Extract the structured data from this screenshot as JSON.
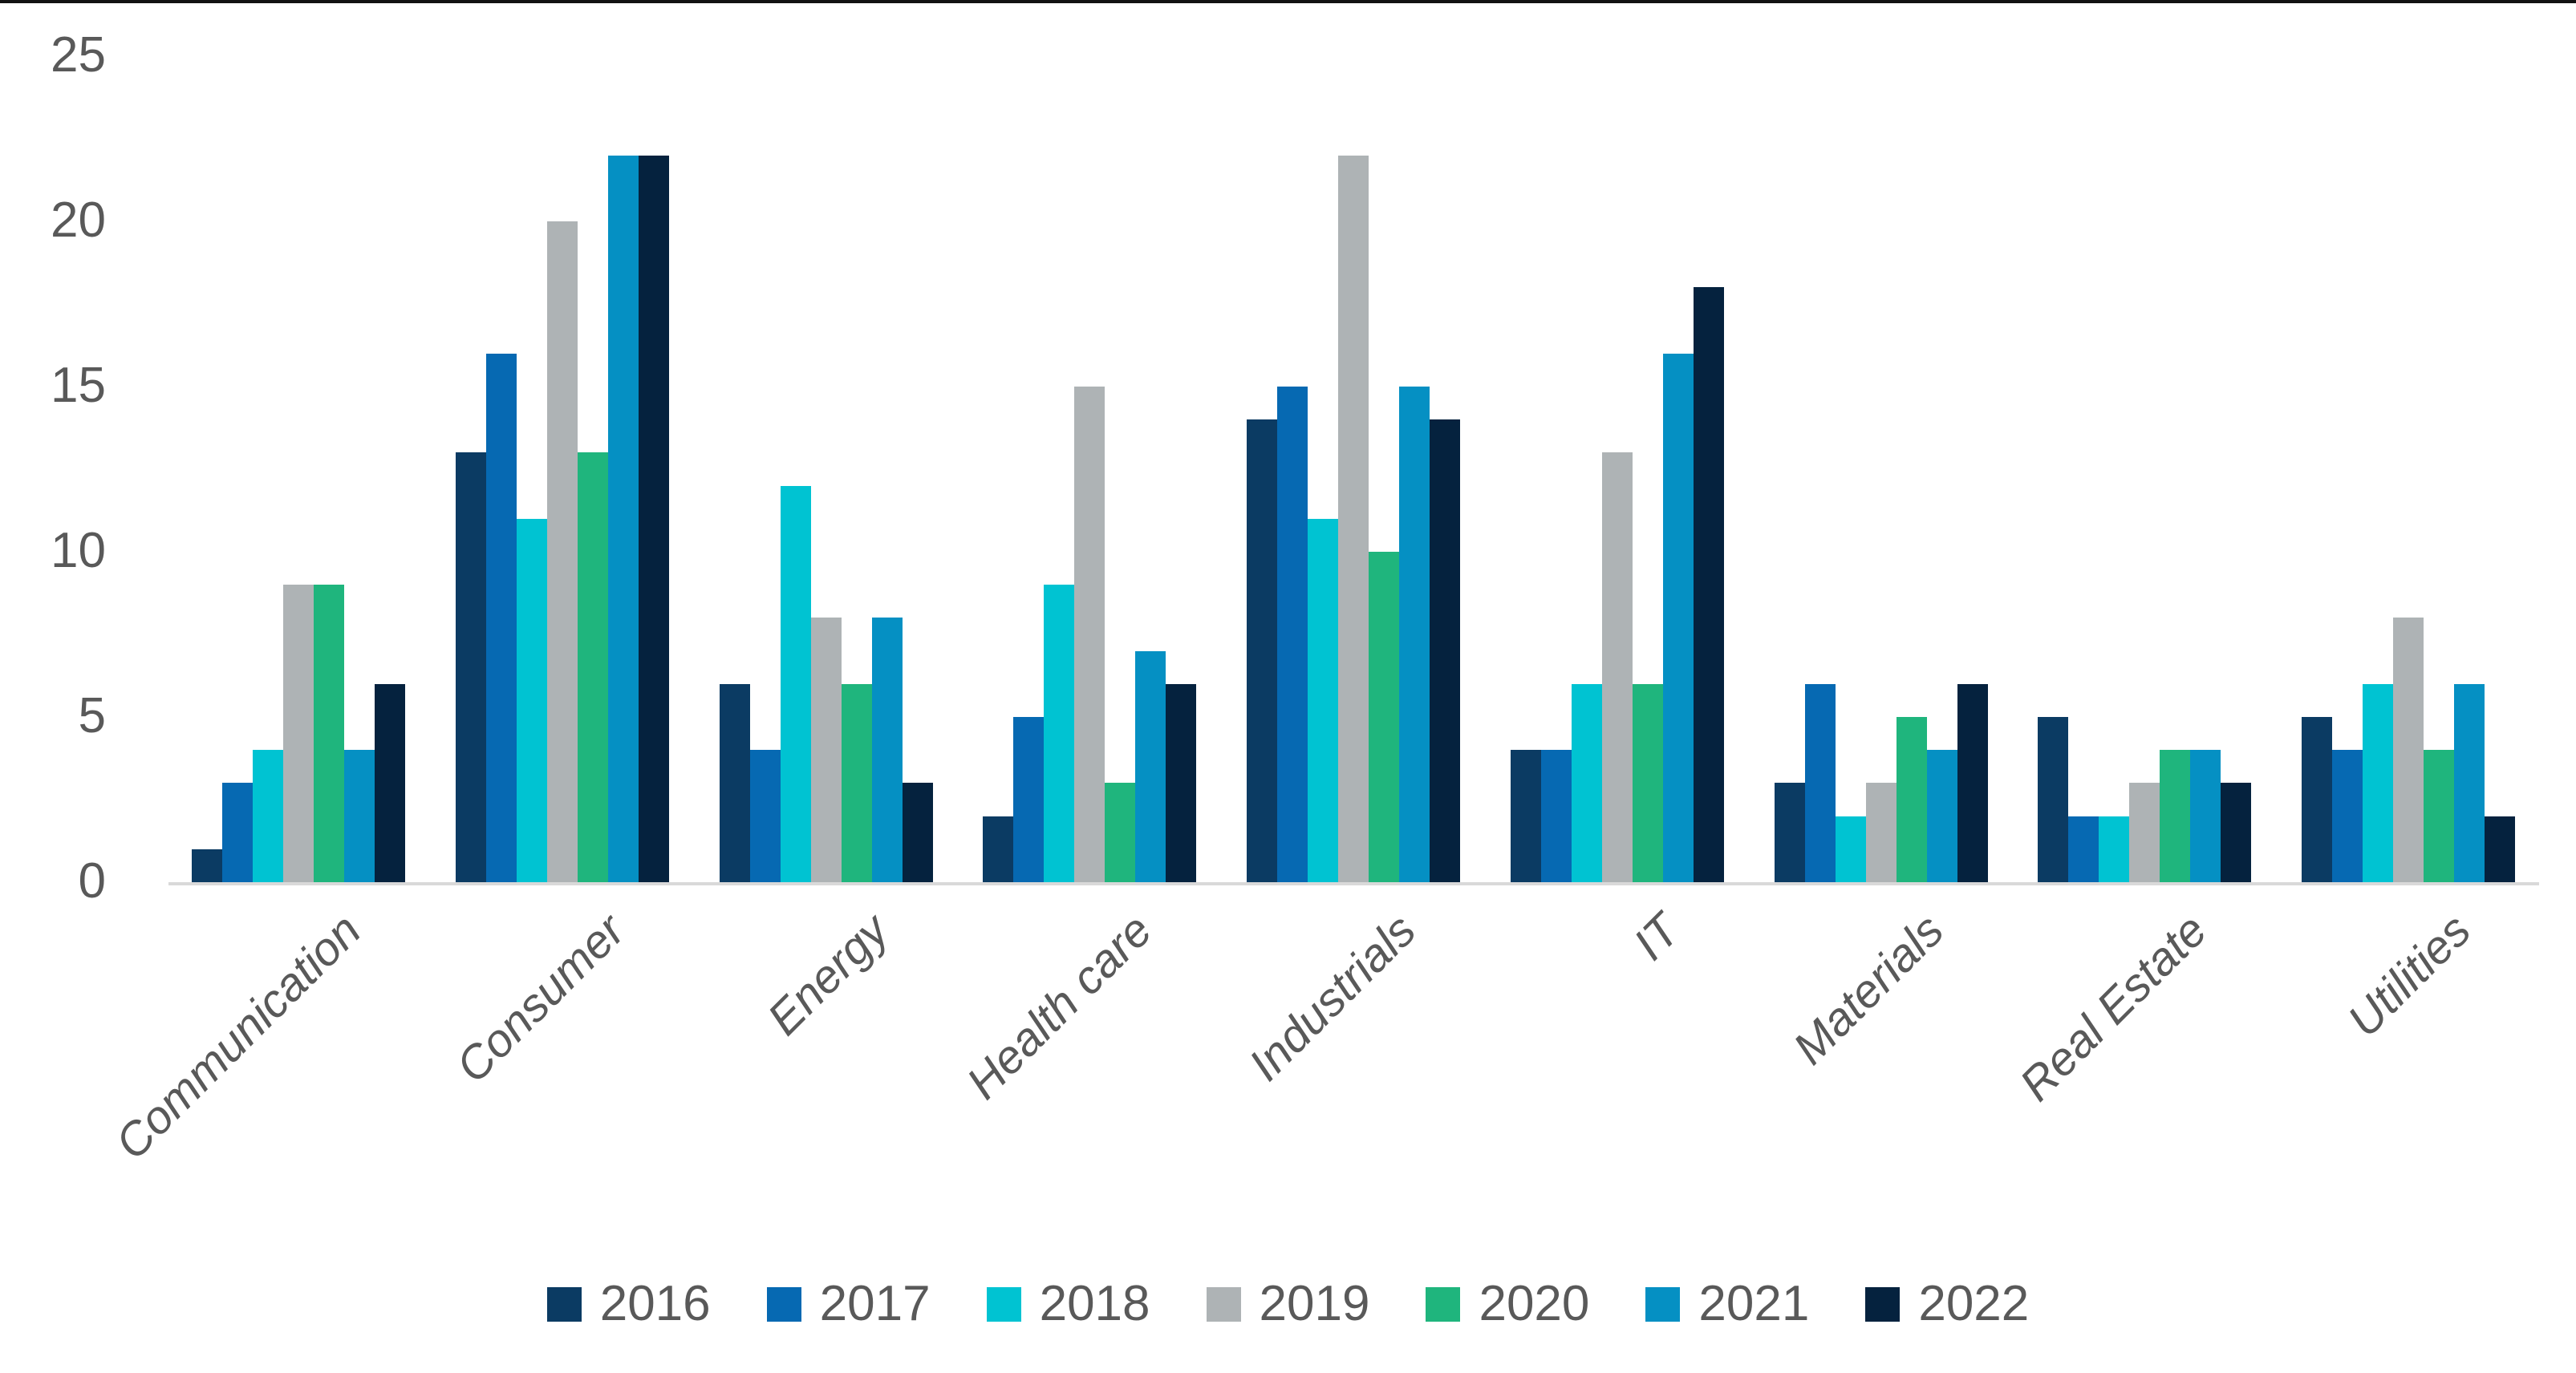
{
  "chart_data": {
    "type": "bar",
    "title": "",
    "xlabel": "",
    "ylabel": "",
    "categories": [
      "Communication",
      "Consumer",
      "Energy",
      "Health care",
      "Industrials",
      "IT",
      "Materials",
      "Real Estate",
      "Utilities"
    ],
    "series": [
      {
        "name": "2016",
        "color": "#0B3B63",
        "values": [
          1,
          13,
          6,
          2,
          14,
          4,
          3,
          5,
          5
        ]
      },
      {
        "name": "2017",
        "color": "#0669B2",
        "values": [
          3,
          16,
          4,
          5,
          15,
          4,
          6,
          2,
          4
        ]
      },
      {
        "name": "2018",
        "color": "#00C3D2",
        "values": [
          4,
          11,
          12,
          9,
          11,
          6,
          2,
          2,
          6
        ]
      },
      {
        "name": "2019",
        "color": "#AEB3B5",
        "values": [
          9,
          20,
          8,
          15,
          22,
          13,
          3,
          3,
          8
        ]
      },
      {
        "name": "2020",
        "color": "#1FB57D",
        "values": [
          9,
          13,
          6,
          3,
          10,
          6,
          5,
          4,
          4
        ]
      },
      {
        "name": "2021",
        "color": "#0590C3",
        "values": [
          4,
          22,
          8,
          7,
          15,
          16,
          4,
          4,
          6
        ]
      },
      {
        "name": "2022",
        "color": "#05223E",
        "values": [
          6,
          22,
          3,
          6,
          14,
          18,
          6,
          3,
          2
        ]
      }
    ],
    "y_axis": {
      "min": 0,
      "max": 25,
      "ticks": [
        0,
        5,
        10,
        15,
        20,
        25
      ]
    },
    "grid": false,
    "legend_position": "bottom"
  },
  "style": {
    "axis_line_color": "#D9D9D9",
    "label_text_color": "#595959",
    "top_border_color": "#121212",
    "background_color": "#FFFFFF"
  }
}
